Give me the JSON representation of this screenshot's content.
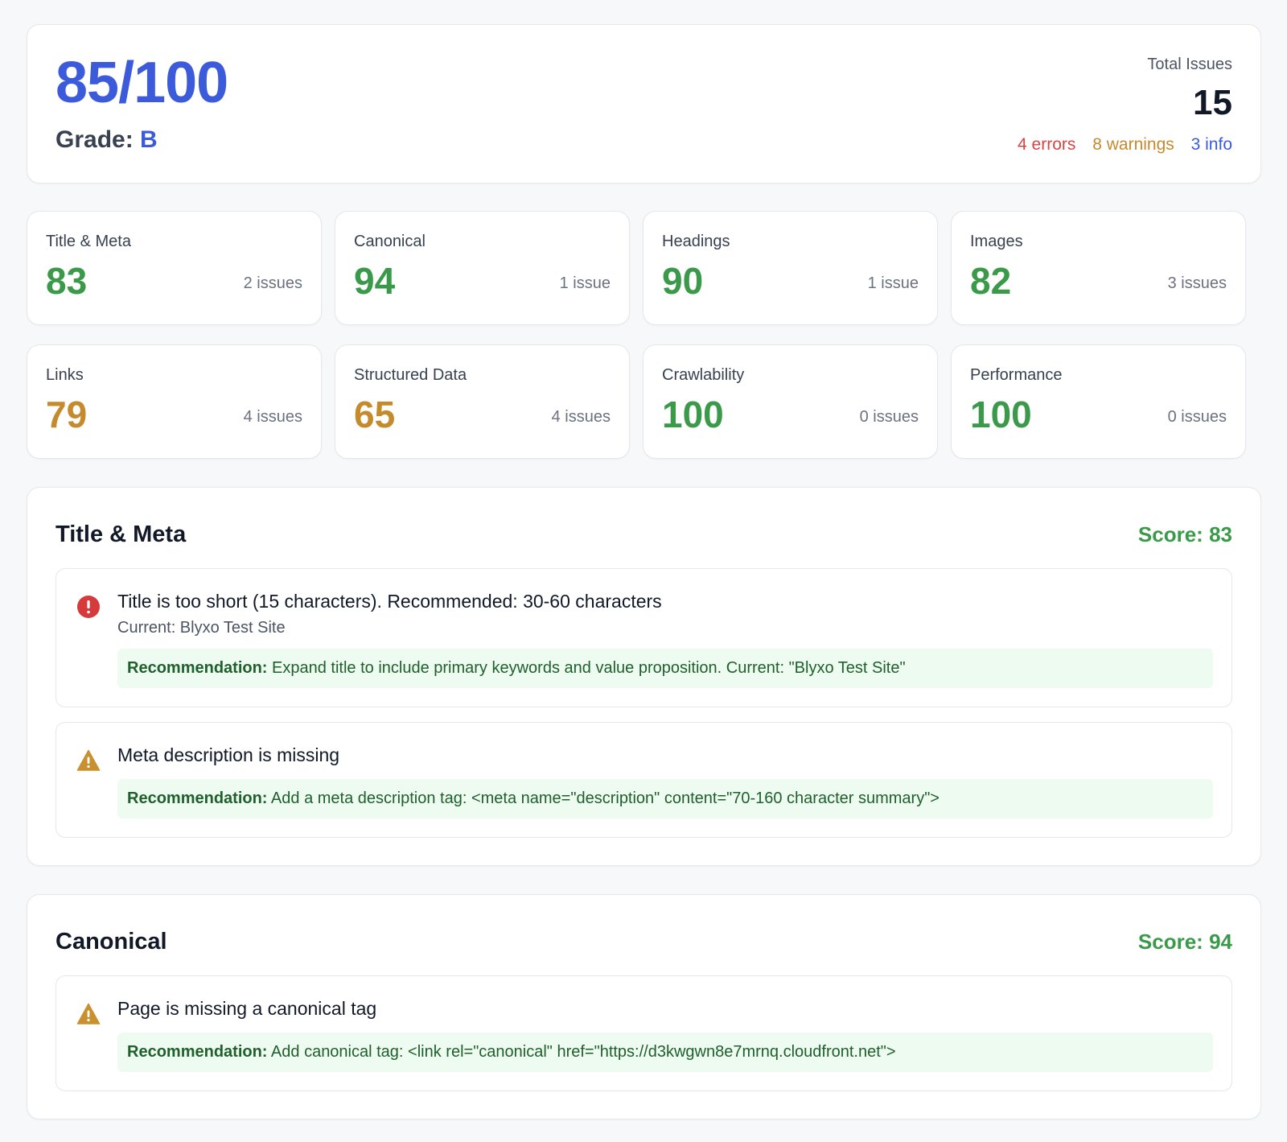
{
  "summary": {
    "score": "85/100",
    "grade_label": "Grade: ",
    "grade": "B",
    "total_issues_label": "Total Issues",
    "total_issues": "15",
    "errors": "4 errors",
    "warnings": "8 warnings",
    "info": "3 info"
  },
  "colors": {
    "accent_blue": "#3b5bdb",
    "score_green": "#3a9a4a",
    "score_amber": "#c48a2c",
    "error_red": "#d64545"
  },
  "categories": [
    {
      "name": "Title & Meta",
      "score": "83",
      "issues": "2 issues",
      "color": "#3a9a4a"
    },
    {
      "name": "Canonical",
      "score": "94",
      "issues": "1 issue",
      "color": "#3a9a4a"
    },
    {
      "name": "Headings",
      "score": "90",
      "issues": "1 issue",
      "color": "#3a9a4a"
    },
    {
      "name": "Images",
      "score": "82",
      "issues": "3 issues",
      "color": "#3a9a4a"
    },
    {
      "name": "Links",
      "score": "79",
      "issues": "4 issues",
      "color": "#c48a2c"
    },
    {
      "name": "Structured Data",
      "score": "65",
      "issues": "4 issues",
      "color": "#c48a2c"
    },
    {
      "name": "Crawlability",
      "score": "100",
      "issues": "0 issues",
      "color": "#3a9a4a"
    },
    {
      "name": "Performance",
      "score": "100",
      "issues": "0 issues",
      "color": "#3a9a4a"
    }
  ],
  "sections": [
    {
      "title": "Title & Meta",
      "score": "Score: 83",
      "issues": [
        {
          "severity": "error",
          "icon": "error-icon",
          "message": "Title is too short (15 characters). Recommended: 30-60 characters",
          "current": "Current: Blyxo Test Site",
          "rec_label": "Recommendation:",
          "rec_text": " Expand title to include primary keywords and value proposition. Current: \"Blyxo Test Site\""
        },
        {
          "severity": "warning",
          "icon": "warning-icon",
          "message": "Meta description is missing",
          "rec_label": "Recommendation:",
          "rec_text": " Add a meta description tag: <meta name=\"description\" content=\"70-160 character summary\">"
        }
      ]
    },
    {
      "title": "Canonical",
      "score": "Score: 94",
      "issues": [
        {
          "severity": "warning",
          "icon": "warning-icon",
          "message": "Page is missing a canonical tag",
          "rec_label": "Recommendation:",
          "rec_text": " Add canonical tag: <link rel=\"canonical\" href=\"https://d3kwgwn8e7mrnq.cloudfront.net\">"
        }
      ]
    }
  ]
}
